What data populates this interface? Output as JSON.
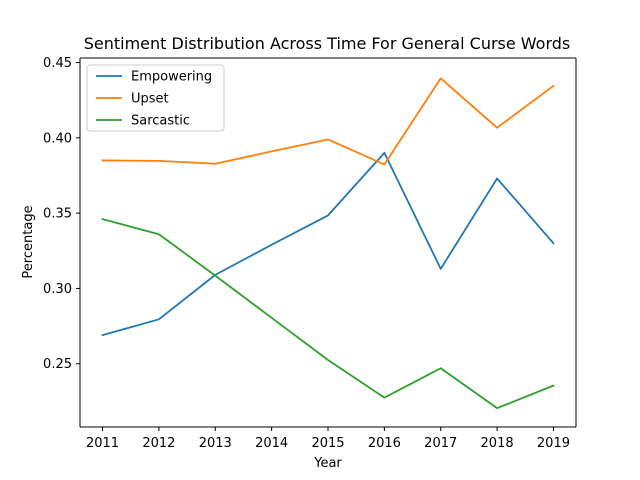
{
  "chart_data": {
    "type": "line",
    "title": "Sentiment Distribution Across Time For General Curse Words",
    "xlabel": "Year",
    "ylabel": "Percentage",
    "x": [
      2011,
      2012,
      2013,
      2014,
      2015,
      2016,
      2017,
      2018,
      2019
    ],
    "xticks": [
      "2011",
      "2012",
      "2013",
      "2014",
      "2015",
      "2016",
      "2017",
      "2018",
      "2019"
    ],
    "yticks": [
      "0.25",
      "0.30",
      "0.35",
      "0.40",
      "0.45"
    ],
    "ytick_values": [
      0.25,
      0.3,
      0.35,
      0.4,
      0.45
    ],
    "xlim": [
      2010.6,
      2019.4
    ],
    "ylim": [
      0.208,
      0.453
    ],
    "grid": false,
    "legend_position": "top-left",
    "series": [
      {
        "name": "Empowering",
        "color": "#1f77b4",
        "values": [
          0.269,
          0.2795,
          0.309,
          0.329,
          0.3485,
          0.39,
          0.313,
          0.373,
          0.33
        ]
      },
      {
        "name": "Upset",
        "color": "#ff7f0e",
        "values": [
          0.385,
          0.3847,
          0.3828,
          0.391,
          0.3989,
          0.3823,
          0.4395,
          0.4067,
          0.4345
        ]
      },
      {
        "name": "Sarcastic",
        "color": "#2ca02c",
        "values": [
          0.346,
          0.336,
          0.3085,
          0.2805,
          0.2525,
          0.2275,
          0.247,
          0.2205,
          0.2355
        ]
      }
    ]
  }
}
